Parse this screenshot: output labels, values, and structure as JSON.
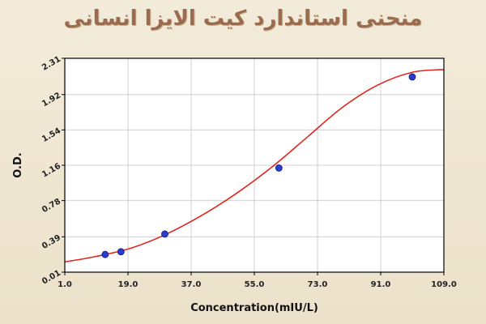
{
  "title": "منحنی استاندارد کیت الایزا انسانی",
  "chart_data": {
    "type": "scatter",
    "xlabel": "Concentration(mIU/L)",
    "ylabel": "O.D.",
    "xlim": [
      1.0,
      109.0
    ],
    "ylim": [
      0.01,
      2.31
    ],
    "x_ticks": [
      "1.0",
      "19.0",
      "37.0",
      "55.0",
      "73.0",
      "91.0",
      "109.0"
    ],
    "y_ticks": [
      "0.01",
      "0.39",
      "0.78",
      "1.16",
      "1.54",
      "1.92",
      "2.31"
    ],
    "grid": true,
    "series": [
      {
        "type": "scatter",
        "x": [
          12.5,
          17.0,
          29.5,
          62.0,
          100.0
        ],
        "y": [
          0.2,
          0.23,
          0.42,
          1.13,
          2.11
        ],
        "color": "#2a3cc9"
      },
      {
        "type": "line",
        "x": [
          1.0,
          10.0,
          20.0,
          30.0,
          40.0,
          50.0,
          60.0,
          70.0,
          80.0,
          90.0,
          100.0,
          109.0
        ],
        "y": [
          0.12,
          0.18,
          0.27,
          0.42,
          0.62,
          0.86,
          1.14,
          1.46,
          1.78,
          2.02,
          2.16,
          2.19
        ],
        "color": "#e0251f"
      }
    ],
    "colors": {
      "curve": "#e0251f",
      "points": "#2a3cc9",
      "axis": "#000000",
      "grid": "#d0d0d0"
    }
  }
}
